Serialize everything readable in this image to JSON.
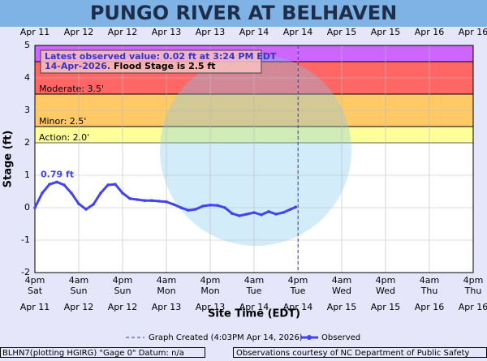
{
  "chart_data": {
    "type": "line",
    "title": "PUNGO RIVER AT BELHAVEN",
    "y_label": "Stage (ft)",
    "x_label": "Site Time (EDT)",
    "ylim": [
      -2,
      5
    ],
    "yticks": [
      -2,
      -1,
      0,
      1,
      2,
      3,
      4,
      5
    ],
    "xlim": [
      "2026-04-11 16:00",
      "2026-04-16 16:00"
    ],
    "xticks": [
      {
        "value": "2026-04-11 16:00",
        "label": [
          "4pm",
          "Sat",
          "Apr 11"
        ]
      },
      {
        "value": "2026-04-12 04:00",
        "label": [
          "4am",
          "Sun",
          "Apr 12"
        ]
      },
      {
        "value": "2026-04-12 16:00",
        "label": [
          "4pm",
          "Sun",
          "Apr 12"
        ]
      },
      {
        "value": "2026-04-13 04:00",
        "label": [
          "4am",
          "Mon",
          "Apr 13"
        ]
      },
      {
        "value": "2026-04-13 16:00",
        "label": [
          "4pm",
          "Mon",
          "Apr 13"
        ]
      },
      {
        "value": "2026-04-14 04:00",
        "label": [
          "4am",
          "Tue",
          "Apr 14"
        ]
      },
      {
        "value": "2026-04-14 16:00",
        "label": [
          "4pm",
          "Tue",
          "Apr 14"
        ]
      },
      {
        "value": "2026-04-15 04:00",
        "label": [
          "4am",
          "Wed",
          "Apr 15"
        ]
      },
      {
        "value": "2026-04-15 16:00",
        "label": [
          "4pm",
          "Wed",
          "Apr 15"
        ]
      },
      {
        "value": "2026-04-16 04:00",
        "label": [
          "4am",
          "Thu",
          "Apr 16"
        ]
      },
      {
        "value": "2026-04-16 16:00",
        "label": [
          "4pm",
          "Thu",
          "Apr 16"
        ]
      }
    ],
    "grid": true,
    "flood_categories": [
      {
        "label": "Action: 2.0'",
        "value": 2.0,
        "color": "#ffff99"
      },
      {
        "label": "Minor: 2.5'",
        "value": 2.5,
        "color": "#ffc966"
      },
      {
        "label": "Moderate: 3.5'",
        "value": 3.5,
        "color": "#ff6666"
      },
      {
        "value": 4.5,
        "color": "#cc66ff"
      }
    ],
    "latest_observed": [
      "Latest observed value: 0.02 ft at 3:24 PM EDT",
      "14-Apr-2026.",
      "Flood Stage is 2.5 ft"
    ],
    "created": {
      "label": "Graph Created (4:03PM Apr 14, 2026)",
      "x": "2026-04-14 16:03"
    },
    "x": [
      "2026-04-11 16:00",
      "2026-04-11 18:00",
      "2026-04-11 20:00",
      "2026-04-11 22:00",
      "2026-04-12 00:00",
      "2026-04-12 02:00",
      "2026-04-12 04:00",
      "2026-04-12 06:00",
      "2026-04-12 08:00",
      "2026-04-12 10:00",
      "2026-04-12 12:00",
      "2026-04-12 14:00",
      "2026-04-12 16:00",
      "2026-04-12 18:00",
      "2026-04-12 20:00",
      "2026-04-12 22:00",
      "2026-04-13 00:00",
      "2026-04-13 02:00",
      "2026-04-13 04:00",
      "2026-04-13 06:00",
      "2026-04-13 08:00",
      "2026-04-13 10:00",
      "2026-04-13 12:00",
      "2026-04-13 14:00",
      "2026-04-13 16:00",
      "2026-04-13 18:00",
      "2026-04-13 20:00",
      "2026-04-13 22:00",
      "2026-04-14 00:00",
      "2026-04-14 02:00",
      "2026-04-14 04:00",
      "2026-04-14 06:00",
      "2026-04-14 08:00",
      "2026-04-14 10:00",
      "2026-04-14 12:00",
      "2026-04-14 14:00",
      "2026-04-14 15:24"
    ],
    "series": [
      {
        "name": "Observed",
        "color": "#4444ee",
        "values": [
          0.0,
          0.45,
          0.72,
          0.79,
          0.7,
          0.45,
          0.12,
          -0.05,
          0.1,
          0.45,
          0.7,
          0.72,
          0.45,
          0.28,
          0.25,
          0.22,
          0.22,
          0.2,
          0.18,
          0.1,
          0.0,
          -0.08,
          -0.05,
          0.05,
          0.08,
          0.07,
          0.0,
          -0.18,
          -0.25,
          -0.2,
          -0.15,
          -0.22,
          -0.12,
          -0.2,
          -0.15,
          -0.05,
          0.02
        ],
        "value_labels": [
          null,
          null,
          null,
          "0.79 ft",
          null,
          null,
          null,
          null,
          null,
          null,
          null,
          null,
          null,
          null,
          null,
          null,
          null,
          null,
          null,
          null,
          null,
          null,
          null,
          null,
          null,
          null,
          null,
          null,
          null,
          null,
          null,
          null,
          null,
          null,
          null,
          null,
          null
        ]
      }
    ],
    "footer_left": "BLHN7(plotting HGIRG) \"Gage 0\" Datum: n/a",
    "footer_right": "Observations courtesy of NC Department of Public Safety"
  }
}
